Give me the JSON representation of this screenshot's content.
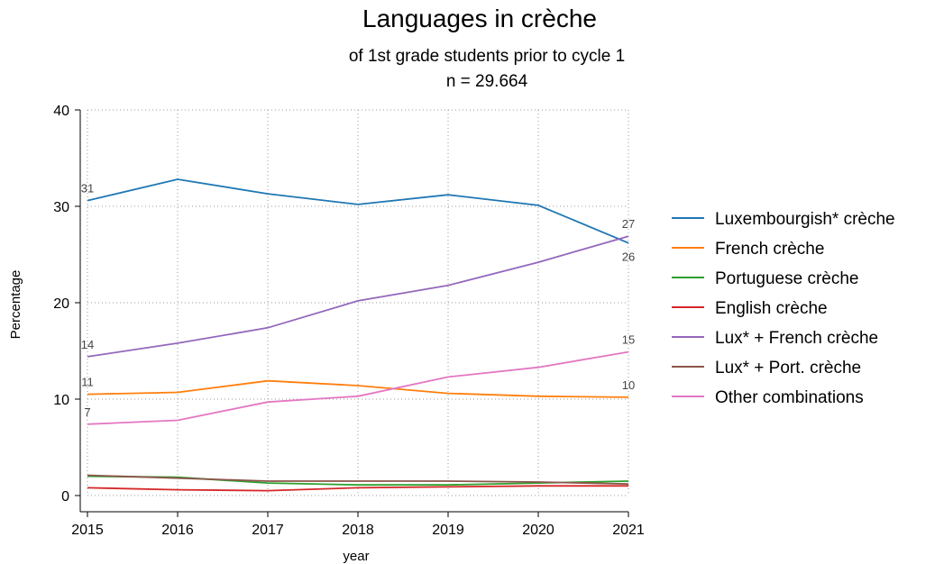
{
  "chart_data": {
    "type": "line",
    "title": "Languages in crèche",
    "subtitle": "of 1st grade students prior to cycle 1",
    "subtitle2": "n = 29.664",
    "xlabel": "year",
    "ylabel": "Percentage",
    "x": [
      2015,
      2016,
      2017,
      2018,
      2019,
      2020,
      2021
    ],
    "x_tick_labels": [
      "2015",
      "2016",
      "2017",
      "2018",
      "2019",
      "2020",
      "2021"
    ],
    "xlim": [
      2015,
      2021
    ],
    "ylim": [
      0,
      40
    ],
    "y_ticks": [
      0,
      10,
      20,
      30,
      40
    ],
    "y_tick_labels": [
      "0",
      "10",
      "20",
      "30",
      "40"
    ],
    "grid": true,
    "legend_position": "right",
    "series": [
      {
        "name": "Luxembourgish* crèche",
        "color": "#1f77b4",
        "values": [
          30.6,
          32.8,
          31.3,
          30.2,
          31.2,
          30.1,
          26.2
        ]
      },
      {
        "name": "French crèche",
        "color": "#ff7f0e",
        "values": [
          10.5,
          10.7,
          11.9,
          11.4,
          10.6,
          10.3,
          10.2
        ]
      },
      {
        "name": "Portuguese crèche",
        "color": "#2ca02c",
        "values": [
          2.0,
          1.9,
          1.3,
          1.1,
          1.1,
          1.3,
          1.5
        ]
      },
      {
        "name": "English crèche",
        "color": "#d62728",
        "values": [
          0.8,
          0.6,
          0.5,
          0.8,
          0.9,
          1.0,
          1.0
        ]
      },
      {
        "name": "Lux* + French crèche",
        "color": "#9467bd",
        "values": [
          14.4,
          15.8,
          17.4,
          20.2,
          21.8,
          24.2,
          26.9
        ]
      },
      {
        "name": "Lux* + Port. crèche",
        "color": "#8c564b",
        "values": [
          2.1,
          1.8,
          1.5,
          1.5,
          1.5,
          1.4,
          1.2
        ]
      },
      {
        "name": "Other combinations",
        "color": "#e377c2",
        "values": [
          7.4,
          7.8,
          9.7,
          10.3,
          12.3,
          13.3,
          14.9
        ]
      }
    ],
    "annotations": [
      {
        "series": 0,
        "index": 0,
        "text": "31",
        "position": "above"
      },
      {
        "series": 0,
        "index": 6,
        "text": "26",
        "position": "below"
      },
      {
        "series": 1,
        "index": 0,
        "text": "11",
        "position": "above"
      },
      {
        "series": 1,
        "index": 6,
        "text": "10",
        "position": "above"
      },
      {
        "series": 4,
        "index": 0,
        "text": "14",
        "position": "above"
      },
      {
        "series": 4,
        "index": 6,
        "text": "27",
        "position": "above"
      },
      {
        "series": 6,
        "index": 0,
        "text": "7",
        "position": "above"
      },
      {
        "series": 6,
        "index": 6,
        "text": "15",
        "position": "above"
      }
    ]
  }
}
